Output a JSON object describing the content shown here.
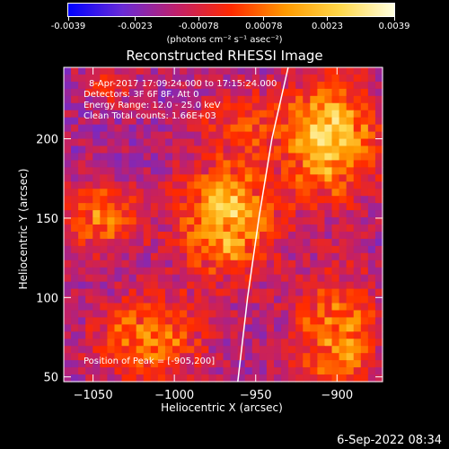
{
  "colorbar": {
    "ticks": [
      "-0.0039",
      "-0.0023",
      "-0.00078",
      "0.00078",
      "0.0023",
      "0.0039"
    ],
    "tick_values": [
      -0.0039,
      -0.0023,
      -0.00078,
      0.00078,
      0.0023,
      0.0039
    ],
    "units": "(photons cm⁻² s⁻¹ asec⁻²)",
    "colormap": [
      "#0000ff",
      "#6a2bd6",
      "#c0206a",
      "#ff2a00",
      "#ff9a00",
      "#ffd84a",
      "#ffffe0"
    ]
  },
  "chart_data": {
    "type": "heatmap",
    "title": "Reconstructed RHESSI Image",
    "xlabel": "Heliocentric X (arcsec)",
    "ylabel": "Heliocentric Y (arcsec)",
    "xlim": [
      -1068,
      -872
    ],
    "ylim": [
      47,
      245
    ],
    "x_ticks": [
      -1050,
      -1000,
      -950,
      -900
    ],
    "y_ticks": [
      50,
      100,
      150,
      200
    ],
    "x_tick_labels": [
      "−1050",
      "−1000",
      "−950",
      "−900"
    ],
    "y_tick_labels": [
      "50",
      "100",
      "150",
      "200"
    ],
    "annotations": [
      "8-Apr-2017 17:09:24.000 to 17:15:24.000",
      "Detectors: 3F 6F 8F, Att 0",
      "Energy Range: 12.0 - 25.0 keV",
      "Clean    Total counts: 1.66E+03"
    ],
    "peak_label": "Position of Peak = [-905,200]",
    "peak": [
      -905,
      200
    ],
    "sources": [
      {
        "x": -968,
        "y": 150,
        "amp": 0.0037,
        "sx": 20,
        "sy": 24
      },
      {
        "x": -905,
        "y": 200,
        "amp": 0.0039,
        "sx": 20,
        "sy": 26
      },
      {
        "x": -1045,
        "y": 150,
        "amp": 0.0027,
        "sx": 16,
        "sy": 14
      },
      {
        "x": -1015,
        "y": 75,
        "amp": 0.0026,
        "sx": 22,
        "sy": 18
      },
      {
        "x": -900,
        "y": 75,
        "amp": 0.0028,
        "sx": 18,
        "sy": 26
      },
      {
        "x": -960,
        "y": 210,
        "amp": 0.0014,
        "sx": 16,
        "sy": 16
      },
      {
        "x": -1040,
        "y": 235,
        "amp": 0.0012,
        "sx": 12,
        "sy": 10
      }
    ],
    "limb_points": [
      [
        -930,
        245
      ],
      [
        -940,
        200
      ],
      [
        -948,
        150
      ],
      [
        -955,
        100
      ],
      [
        -961,
        47
      ]
    ]
  },
  "footer": {
    "timestamp": "6-Sep-2022 08:34"
  }
}
